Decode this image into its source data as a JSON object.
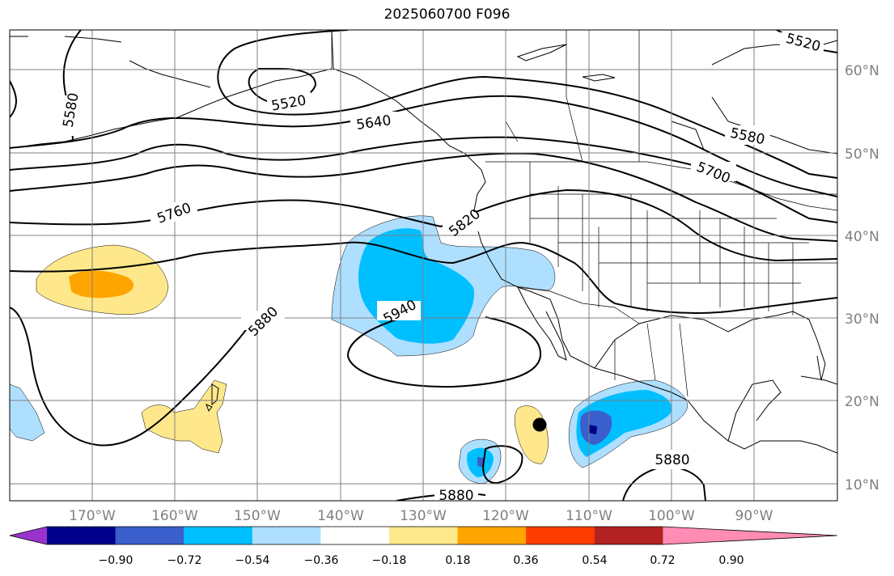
{
  "title": "2025060700 F096",
  "map": {
    "lat_labels": [
      "60°N",
      "50°N",
      "40°N",
      "30°N",
      "20°N",
      "10°N"
    ],
    "lon_labels": [
      "170°W",
      "160°W",
      "150°W",
      "140°W",
      "130°W",
      "120°W",
      "110°W",
      "100°W",
      "90°W"
    ],
    "contour_labels": [
      "5520",
      "5520",
      "5580",
      "5580",
      "5640",
      "5700",
      "5760",
      "5820",
      "5880",
      "5880",
      "5880",
      "5940"
    ],
    "colors": {
      "grid": "#808080",
      "land_outline": "#000000",
      "background": "#ffffff"
    }
  },
  "colorbar": {
    "extend": "both",
    "ticks": [
      "−0.90",
      "−0.72",
      "−0.54",
      "−0.36",
      "−0.18",
      "0.18",
      "0.36",
      "0.54",
      "0.72",
      "0.90"
    ],
    "colors": [
      "#9932cc",
      "#00008b",
      "#3a5fcd",
      "#00bfff",
      "#afdfff",
      "#ffffff",
      "#ffe88c",
      "#ffa500",
      "#ff3c00",
      "#b22222",
      "#ff8cb4"
    ]
  },
  "marker": {
    "shape": "filled-circle",
    "color": "#000000"
  }
}
